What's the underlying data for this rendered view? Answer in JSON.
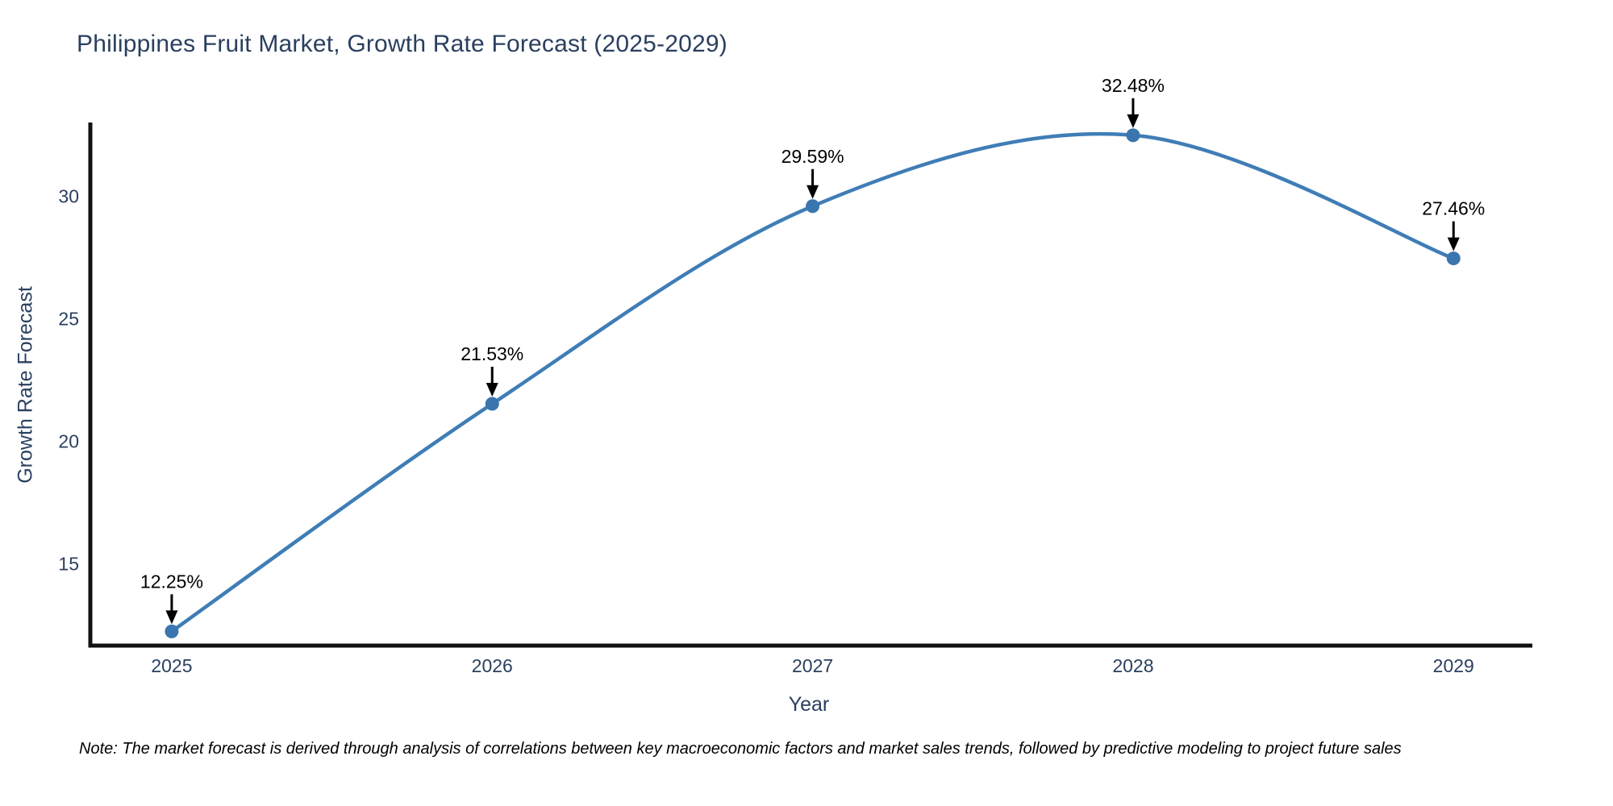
{
  "chart_data": {
    "type": "line",
    "title": "Philippines Fruit Market, Growth Rate Forecast (2025-2029)",
    "xlabel": "Year",
    "ylabel": "Growth Rate Forecast",
    "x": [
      2025,
      2026,
      2027,
      2028,
      2029
    ],
    "series": [
      {
        "name": "Growth Rate Forecast",
        "values": [
          12.25,
          21.53,
          29.59,
          32.48,
          27.46
        ]
      }
    ],
    "point_labels": [
      "12.25%",
      "21.53%",
      "29.59%",
      "32.48%",
      "27.46%"
    ],
    "xticks": [
      "2025",
      "2026",
      "2027",
      "2028",
      "2029"
    ],
    "yticks": [
      15,
      20,
      25,
      30
    ],
    "xlim": [
      2024.746,
      2029.246
    ],
    "ylim": [
      11.67,
      33.0
    ],
    "line_shape": "spline",
    "grid": false,
    "legend_position": "none",
    "colors": {
      "line": "#3f7db6",
      "marker": "#3a76ad",
      "axis": "#111111",
      "tick_label": "#2a3f5f",
      "axis_title": "#2a3f5f",
      "title": "#2a3f5f",
      "annotation_text": "#000000",
      "annotation_arrow": "#000000",
      "background": "#ffffff"
    },
    "note": "Note: The market forecast is derived through analysis of correlations between key macroeconomic factors and market sales trends, followed by predictive modeling to project future sales"
  }
}
